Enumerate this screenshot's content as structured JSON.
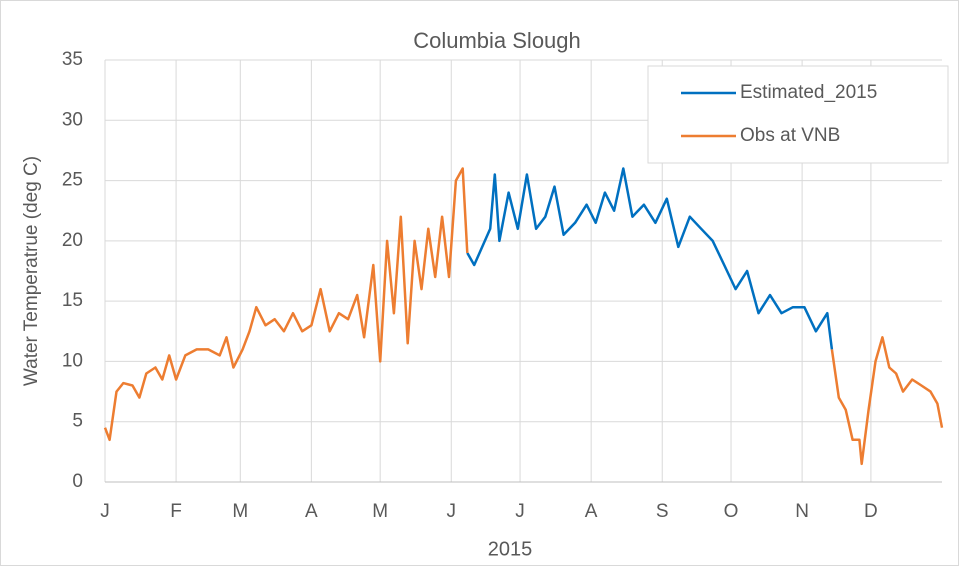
{
  "chart_data": {
    "type": "line",
    "title": "Columbia Slough",
    "xlabel": "2015",
    "ylabel": "Water Temperatrue (deg C)",
    "xlim": [
      0,
      365
    ],
    "xticks": [
      {
        "value": 0,
        "label": "J"
      },
      {
        "value": 31,
        "label": "F"
      },
      {
        "value": 59,
        "label": "M"
      },
      {
        "value": 90,
        "label": "A"
      },
      {
        "value": 120,
        "label": "M"
      },
      {
        "value": 151,
        "label": "J"
      },
      {
        "value": 181,
        "label": "J"
      },
      {
        "value": 212,
        "label": "A"
      },
      {
        "value": 243,
        "label": "S"
      },
      {
        "value": 273,
        "label": "O"
      },
      {
        "value": 304,
        "label": "N"
      },
      {
        "value": 334,
        "label": "D"
      }
    ],
    "ylim": [
      0,
      35
    ],
    "yticks": [
      0,
      5,
      10,
      15,
      20,
      25,
      30,
      35
    ],
    "grid": true,
    "legend": "upper right",
    "series": [
      {
        "name": "Estimated_2015",
        "color": "#0070c0",
        "x": [
          158,
          161,
          168,
          170,
          172,
          176,
          180,
          184,
          188,
          192,
          196,
          200,
          205,
          210,
          214,
          218,
          222,
          226,
          230,
          235,
          240,
          245,
          250,
          255,
          260,
          265,
          270,
          275,
          280,
          285,
          290,
          295,
          300,
          305,
          310,
          315,
          317
        ],
        "values": [
          19,
          18,
          21,
          25.5,
          20,
          24,
          21,
          25.5,
          21,
          22,
          24.5,
          20.5,
          21.5,
          23,
          21.5,
          24,
          22.5,
          26,
          22,
          23,
          21.5,
          23.5,
          19.5,
          22,
          21,
          20,
          18,
          16,
          17.5,
          14,
          15.5,
          14,
          14.5,
          14.5,
          12.5,
          14,
          11
        ]
      },
      {
        "name": "Obs at VNB",
        "color": "#ed7d31",
        "x": [
          0,
          2,
          5,
          8,
          12,
          15,
          18,
          22,
          25,
          28,
          31,
          35,
          40,
          45,
          50,
          53,
          56,
          60,
          63,
          66,
          70,
          74,
          78,
          82,
          86,
          90,
          94,
          98,
          102,
          106,
          110,
          113,
          117,
          120,
          123,
          126,
          129,
          132,
          135,
          138,
          141,
          144,
          147,
          150,
          153,
          156,
          158,
          null,
          317,
          320,
          323,
          326,
          329,
          330,
          333,
          336,
          339,
          342,
          345,
          348,
          352,
          356,
          360,
          363,
          365
        ],
        "values": [
          4.5,
          3.5,
          7.5,
          8.2,
          8,
          7,
          9,
          9.5,
          8.5,
          10.5,
          8.5,
          10.5,
          11,
          11,
          10.5,
          12,
          9.5,
          11,
          12.5,
          14.5,
          13,
          13.5,
          12.5,
          14,
          12.5,
          13,
          16,
          12.5,
          14,
          13.5,
          15.5,
          12,
          18,
          10,
          20,
          14,
          22,
          11.5,
          20,
          16,
          21,
          17,
          22,
          17,
          25,
          26,
          19,
          null,
          11,
          7,
          6,
          3.5,
          3.5,
          1.5,
          6,
          10,
          12,
          9.5,
          9,
          7.5,
          8.5,
          8,
          7.5,
          6.5,
          4.5
        ]
      }
    ]
  }
}
